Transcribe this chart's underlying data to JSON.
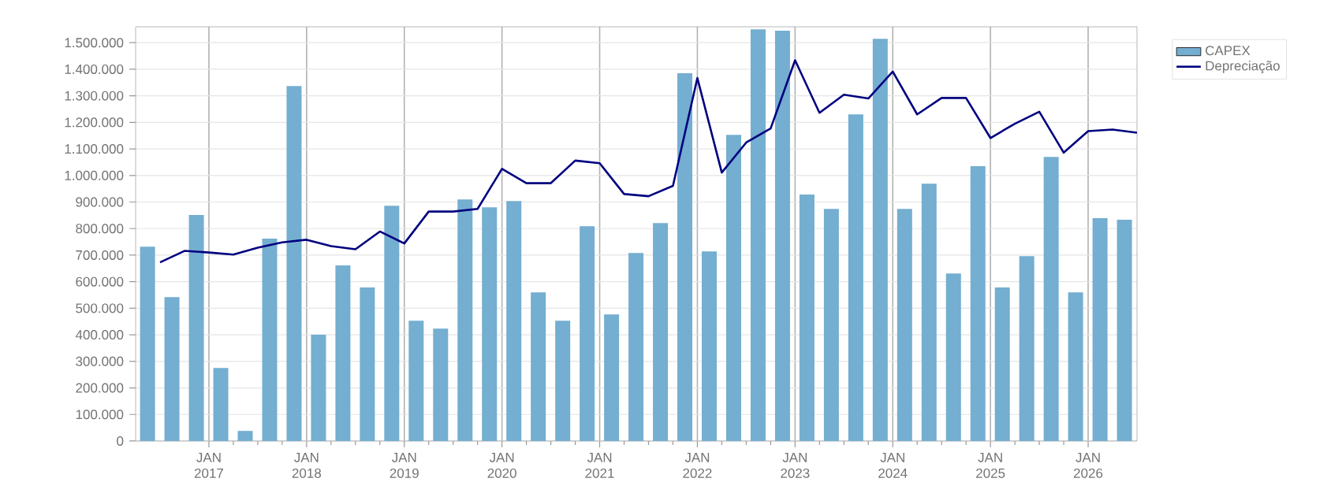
{
  "chart_data": {
    "type": "bar",
    "xlim": [
      "2016-04",
      "2026-07"
    ],
    "ylim": [
      0,
      1560000
    ],
    "xticks": [
      {
        "value": "2017-01",
        "label": "JAN 2017"
      },
      {
        "value": "2018-01",
        "label": "JAN 2018"
      },
      {
        "value": "2019-01",
        "label": "JAN 2019"
      },
      {
        "value": "2020-01",
        "label": "JAN 2020"
      },
      {
        "value": "2021-01",
        "label": "JAN 2021"
      },
      {
        "value": "2022-01",
        "label": "JAN 2022"
      },
      {
        "value": "2023-01",
        "label": "JAN 2023"
      },
      {
        "value": "2024-01",
        "label": "JAN 2024"
      },
      {
        "value": "2025-01",
        "label": "JAN 2025"
      },
      {
        "value": "2026-01",
        "label": "JAN 2026"
      }
    ],
    "yticks": [
      0,
      {
        "value": 100000,
        "label": "100.000"
      },
      {
        "value": 200000,
        "label": "200.000"
      },
      {
        "value": 300000,
        "label": "300.000"
      },
      {
        "value": 400000,
        "label": "400.000"
      },
      {
        "value": 500000,
        "label": "500.000"
      },
      {
        "value": 600000,
        "label": "600.000"
      },
      {
        "value": 700000,
        "label": "700.000"
      },
      {
        "value": 800000,
        "label": "800.000"
      },
      {
        "value": 900000,
        "label": "900.000"
      },
      {
        "value": 1000000,
        "label": "1.000.000"
      },
      {
        "value": 1100000,
        "label": "1.100.000"
      },
      {
        "value": 1200000,
        "label": "1.200.000"
      },
      {
        "value": 1300000,
        "label": "1.300.000"
      },
      {
        "value": 1400000,
        "label": "1.400.000"
      },
      {
        "value": 1500000,
        "label": "1.500.000"
      }
    ],
    "grid": true,
    "legend": "top right",
    "series": [
      {
        "name": "CAPEX",
        "color": "#74aed0",
        "x": [
          "2016-05-15",
          "2016-08-15",
          "2016-11-15",
          "2017-02-15",
          "2017-05-15",
          "2017-08-15",
          "2017-11-15",
          "2018-02-15",
          "2018-05-15",
          "2018-08-15",
          "2018-11-15",
          "2019-02-15",
          "2019-05-15",
          "2019-08-15",
          "2019-11-15",
          "2020-02-15",
          "2020-05-15",
          "2020-08-15",
          "2020-11-15",
          "2021-02-15",
          "2021-05-15",
          "2021-08-15",
          "2021-11-15",
          "2022-02-15",
          "2022-05-15",
          "2022-08-15",
          "2022-11-15",
          "2023-02-15",
          "2023-05-15",
          "2023-08-15",
          "2023-11-15",
          "2024-02-15",
          "2024-05-15",
          "2024-08-15",
          "2024-11-15",
          "2025-02-15",
          "2025-05-15",
          "2025-08-15",
          "2025-11-15",
          "2026-02-15",
          "2026-05-15"
        ],
        "values": [
          732000,
          542000,
          851000,
          275000,
          38000,
          762000,
          1337000,
          400000,
          661000,
          578000,
          886000,
          453000,
          423000,
          910000,
          880000,
          904000,
          560000,
          453000,
          809000,
          477000,
          708000,
          821000,
          1385000,
          714000,
          1153000,
          1550000,
          1545000,
          928000,
          874000,
          1230000,
          1515000,
          874000,
          969000,
          631000,
          1035000,
          578000,
          696000,
          1070000,
          560000,
          839000,
          833000
        ]
      },
      {
        "name": "Depreciação",
        "type": "line",
        "color": "#000080",
        "x": [
          "2016-07",
          "2016-10",
          "2017-01",
          "2017-04",
          "2017-07",
          "2017-10",
          "2018-01",
          "2018-04",
          "2018-07",
          "2018-10",
          "2019-01",
          "2019-04",
          "2019-07",
          "2019-10",
          "2020-01",
          "2020-04",
          "2020-07",
          "2020-10",
          "2021-01",
          "2021-04",
          "2021-07",
          "2021-10",
          "2022-01",
          "2022-04",
          "2022-07",
          "2022-10",
          "2023-01",
          "2023-04",
          "2023-07",
          "2023-10",
          "2024-01",
          "2024-04",
          "2024-07",
          "2024-10",
          "2025-01",
          "2025-04",
          "2025-07",
          "2025-10",
          "2026-01",
          "2026-04",
          "2026-07"
        ],
        "values": [
          673000,
          716000,
          710000,
          702000,
          728000,
          748000,
          758000,
          734000,
          722000,
          789000,
          744000,
          864000,
          864000,
          874000,
          1025000,
          971000,
          971000,
          1056000,
          1046000,
          930000,
          922000,
          961000,
          1367000,
          1011000,
          1124000,
          1177000,
          1434000,
          1236000,
          1304000,
          1290000,
          1391000,
          1230000,
          1292000,
          1292000,
          1141000,
          1195000,
          1240000,
          1086000,
          1167000,
          1173000,
          1161000
        ]
      }
    ]
  }
}
